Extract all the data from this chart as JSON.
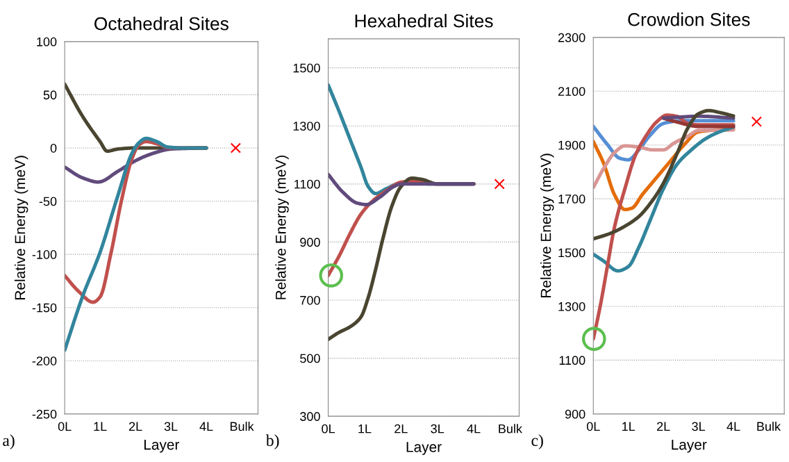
{
  "chart_data": [
    {
      "type": "line",
      "title": "Octahedral Sites",
      "xlabel": "Layer",
      "ylabel": "Relative Energy (meV)",
      "annotations": [
        "a)"
      ],
      "xlim": [
        0,
        5.46
      ],
      "ylim": [
        -250,
        100
      ],
      "yticks": [
        -250,
        -200,
        -150,
        -100,
        -50,
        0,
        50,
        100
      ],
      "xticks": [
        {
          "value": 0,
          "label": "0L"
        },
        {
          "value": 1,
          "label": "1L"
        },
        {
          "value": 2,
          "label": "2L"
        },
        {
          "value": 3,
          "label": "3L"
        },
        {
          "value": 4,
          "label": "4L"
        },
        {
          "value": 5,
          "label": "Bulk"
        }
      ],
      "grid": "y",
      "legend": false,
      "line_style": "solid",
      "series": [
        {
          "color": "#4a4530",
          "x": [
            0,
            0.5,
            1,
            1.2,
            1.5,
            2,
            3,
            4
          ],
          "values": [
            60,
            30,
            6,
            -3,
            -1,
            0,
            0,
            0
          ]
        },
        {
          "color": "#604a7b",
          "x": [
            0,
            0.5,
            0.95,
            1.5,
            2,
            2.5,
            3,
            4
          ],
          "values": [
            -18,
            -28,
            -32,
            -22,
            -12,
            -5,
            -1,
            0
          ]
        },
        {
          "color": "#c0504d",
          "x": [
            0,
            0.4,
            0.8,
            1.0,
            1.3,
            1.6,
            1.9,
            2.1,
            2.3,
            2.6,
            3,
            4
          ],
          "values": [
            -120,
            -135,
            -145,
            -140,
            -100,
            -50,
            -10,
            3,
            6,
            4,
            0,
            0
          ]
        },
        {
          "color": "#31859c",
          "x": [
            0,
            0.5,
            1.0,
            1.5,
            1.9,
            2.1,
            2.3,
            2.6,
            2.9,
            3.3,
            4
          ],
          "values": [
            -190,
            -140,
            -98,
            -45,
            -5,
            5,
            9,
            6,
            1,
            0,
            0
          ]
        },
        {
          "type": "scatter",
          "marker": "cross",
          "color": "#ff0000",
          "x": [
            4.83
          ],
          "values": [
            0
          ]
        }
      ]
    },
    {
      "type": "line",
      "title": "Hexahedral Sites",
      "xlabel": "Layer",
      "ylabel": "Relative Energy (meV)",
      "annotations": [
        "b)"
      ],
      "xlim": [
        0,
        5.25
      ],
      "ylim": [
        300,
        1600
      ],
      "yticks": [
        300,
        500,
        700,
        900,
        1100,
        1300,
        1500
      ],
      "xticks": [
        {
          "value": 0,
          "label": "0L"
        },
        {
          "value": 1,
          "label": "1L"
        },
        {
          "value": 2,
          "label": "2L"
        },
        {
          "value": 3,
          "label": "3L"
        },
        {
          "value": 4,
          "label": "4L"
        },
        {
          "value": 5,
          "label": "Bulk"
        }
      ],
      "grid": "y",
      "legend": false,
      "line_style": "solid",
      "series": [
        {
          "color": "#31859c",
          "x": [
            0,
            0.3,
            0.6,
            0.9,
            1.1,
            1.3,
            1.6,
            2,
            3,
            4
          ],
          "values": [
            1441,
            1350,
            1254,
            1158,
            1091,
            1067,
            1084,
            1103,
            1100,
            1100
          ]
        },
        {
          "color": "#c0504d",
          "x": [
            0,
            0.3,
            0.6,
            0.9,
            1.2,
            1.6,
            2,
            2.4,
            3,
            4
          ],
          "values": [
            785,
            852,
            929,
            996,
            1039,
            1077,
            1106,
            1110,
            1100,
            1100
          ]
        },
        {
          "color": "#4a4530",
          "x": [
            0,
            0.3,
            0.6,
            0.9,
            1.1,
            1.3,
            1.5,
            1.75,
            2,
            2.3,
            2.6,
            3,
            4
          ],
          "values": [
            565,
            589,
            608,
            642,
            709,
            804,
            910,
            1024,
            1091,
            1120,
            1115,
            1100,
            1100
          ]
        },
        {
          "color": "#604a7b",
          "x": [
            0,
            0.4,
            0.8,
            1.05,
            1.4,
            1.8,
            2,
            3,
            4
          ],
          "values": [
            1133,
            1072,
            1034,
            1029,
            1053,
            1091,
            1100,
            1100,
            1100
          ]
        },
        {
          "type": "scatter",
          "marker": "cross",
          "color": "#ff0000",
          "x": [
            4.71
          ],
          "values": [
            1100
          ]
        },
        {
          "type": "scatter",
          "marker": "circle",
          "color": "#5cbf4f",
          "x": [
            0.08
          ],
          "values": [
            785
          ]
        }
      ]
    },
    {
      "type": "line",
      "title": "Crowdion Sites",
      "xlabel": "Layer",
      "ylabel": "Relative Energy (meV)",
      "annotations": [
        "c)"
      ],
      "xlim": [
        0,
        5.45
      ],
      "ylim": [
        900,
        2300
      ],
      "yticks": [
        900,
        1100,
        1300,
        1500,
        1700,
        1900,
        2100,
        2300
      ],
      "xticks": [
        {
          "value": 0,
          "label": "0L"
        },
        {
          "value": 1,
          "label": "1L"
        },
        {
          "value": 2,
          "label": "2L"
        },
        {
          "value": 3,
          "label": "3L"
        },
        {
          "value": 4,
          "label": "4L"
        },
        {
          "value": 5,
          "label": "Bulk"
        }
      ],
      "grid": "y",
      "legend": false,
      "line_style": "solid",
      "series": [
        {
          "color": "#558ed5",
          "x": [
            0,
            0.4,
            0.75,
            1.0,
            1.3,
            1.6,
            2,
            2.5,
            3,
            4
          ],
          "values": [
            1969,
            1902,
            1851,
            1845,
            1882,
            1933,
            1980,
            1990,
            1990,
            1990
          ]
        },
        {
          "color": "#e46c0a",
          "x": [
            0,
            0.3,
            0.6,
            0.9,
            1.1,
            1.4,
            1.8,
            2.2,
            2.6,
            3,
            4
          ],
          "values": [
            1913,
            1830,
            1716,
            1660,
            1665,
            1716,
            1778,
            1840,
            1902,
            1949,
            1960
          ]
        },
        {
          "color": "#d99694",
          "x": [
            0,
            0.3,
            0.6,
            0.9,
            1.3,
            1.7,
            2,
            2.3,
            2.7,
            3,
            4
          ],
          "values": [
            1742,
            1814,
            1871,
            1897,
            1892,
            1882,
            1882,
            1907,
            1933,
            1954,
            1956
          ]
        },
        {
          "color": "#31859c",
          "x": [
            0,
            0.3,
            0.7,
            1.0,
            1.3,
            1.6,
            2,
            2.4,
            2.8,
            3.2,
            3.6,
            4
          ],
          "values": [
            1494,
            1468,
            1432,
            1448,
            1520,
            1613,
            1737,
            1830,
            1882,
            1923,
            1949,
            1967
          ]
        },
        {
          "color": "#c0504d",
          "x": [
            0,
            0.2,
            0.4,
            0.6,
            0.9,
            1.2,
            1.5,
            1.8,
            2.1,
            2.4,
            2.7,
            3,
            4
          ],
          "values": [
            1179,
            1303,
            1448,
            1592,
            1737,
            1861,
            1933,
            1985,
            2011,
            2006,
            1980,
            1975,
            1975
          ]
        },
        {
          "color": "#953735",
          "x": [
            2,
            2.4,
            3,
            4
          ],
          "values": [
            2000,
            1985,
            1969,
            1969
          ]
        },
        {
          "color": "#604a7b",
          "x": [
            2,
            2.5,
            3,
            4
          ],
          "values": [
            2000,
            2004,
            2007,
            2000
          ]
        },
        {
          "color": "#4a4530",
          "x": [
            0,
            0.5,
            0.9,
            1.3,
            1.7,
            2,
            2.4,
            2.7,
            3,
            3.3,
            3.6,
            4
          ],
          "values": [
            1551,
            1572,
            1598,
            1634,
            1696,
            1758,
            1871,
            1964,
            2016,
            2028,
            2021,
            2008
          ]
        },
        {
          "type": "scatter",
          "marker": "cross",
          "color": "#ff0000",
          "x": [
            4.66
          ],
          "values": [
            1987
          ]
        },
        {
          "type": "scatter",
          "marker": "circle",
          "color": "#5cbf4f",
          "x": [
            0.02
          ],
          "values": [
            1179
          ]
        }
      ]
    }
  ]
}
